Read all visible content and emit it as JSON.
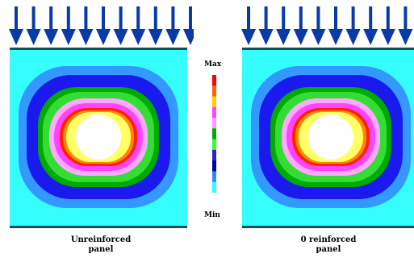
{
  "legend": {
    "max_label": "Max",
    "min_label": "Min",
    "colors": [
      "#ff0000",
      "#ff6600",
      "#ffcc00",
      "#ff44ff",
      "#ff99ff",
      "#00aa00",
      "#33ff33",
      "#2222dd",
      "#0000aa",
      "#3388ff",
      "#33ffff"
    ]
  },
  "panels": [
    {
      "caption_line1": "Unreinforced",
      "caption_line2": "panel"
    },
    {
      "caption_line1": "0 reinforced",
      "caption_line2": "panel"
    }
  ],
  "contour_colors": {
    "background": "#33ffff",
    "ring_outer": "#3399ff",
    "ring_blue": "#1a1aee",
    "ring_darkgreen": "#00aa00",
    "ring_green": "#33dd33",
    "ring_lightpink": "#ffaaff",
    "ring_magenta": "#ff44ff",
    "ring_red": "#ff2200",
    "ring_orange": "#ff8800",
    "ring_yellow": "#ffff66",
    "hole": "#ffffff",
    "arrow": "#0a3aa8",
    "edge": "#145050"
  }
}
